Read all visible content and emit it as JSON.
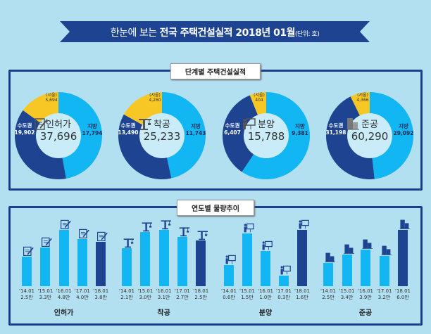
{
  "title": {
    "prefix": "한눈에 보는 ",
    "bold": "전국 주택건설실적 2018년 01월",
    "unit": "(단위: 호)"
  },
  "colors": {
    "metro": "#1d4391",
    "region": "#12b6f2",
    "seoul": "#f7c825",
    "latest_bar": "#1d4391",
    "bar": "#12b6f2"
  },
  "section1": {
    "label": "단계별 주택건설실적",
    "stages": [
      {
        "name": "인허가",
        "total": "37,696",
        "metro_label": "수도권",
        "metro": "19,902",
        "region_label": "지방",
        "region": "17,794",
        "seoul_label": "(서울)",
        "seoul": "5,694",
        "icon": "document-pen-icon"
      },
      {
        "name": "착공",
        "total": "25,233",
        "metro_label": "수도권",
        "metro": "13,490",
        "region_label": "지방",
        "region": "11,743",
        "seoul_label": "(서울)",
        "seoul": "4,260",
        "icon": "crane-icon"
      },
      {
        "name": "분양",
        "total": "15,788",
        "metro_label": "수도권",
        "metro": "6,407",
        "region_label": "지방",
        "region": "9,381",
        "seoul_label": "(서울)",
        "seoul": "404",
        "icon": "presentation-board-icon"
      },
      {
        "name": "준공",
        "total": "60,290",
        "metro_label": "수도권",
        "metro": "31,198",
        "region_label": "지방",
        "region": "29,092",
        "seoul_label": "(서울)",
        "seoul": "4,366",
        "icon": "buildings-icon"
      }
    ]
  },
  "section2": {
    "label": "연도별 물량추이",
    "groups": [
      {
        "name": "인허가",
        "years": [
          "'14.01",
          "'15.01",
          "'16.01",
          "'17.01",
          "'18.01"
        ],
        "values": [
          "2.5만",
          "3.3만",
          "4.8만",
          "4.0만",
          "3.8만"
        ],
        "numbers": [
          2.5,
          3.3,
          4.8,
          4.0,
          3.8
        ]
      },
      {
        "name": "착공",
        "years": [
          "'14.01",
          "'15.01",
          "'16.01",
          "'17.01",
          "'18.01"
        ],
        "values": [
          "2.1만",
          "3.0만",
          "3.1만",
          "2.7만",
          "2.5만"
        ],
        "numbers": [
          2.1,
          3.0,
          3.1,
          2.7,
          2.5
        ]
      },
      {
        "name": "분양",
        "years": [
          "'14.01",
          "'15.01",
          "'16.01",
          "'17.01",
          "'18.01"
        ],
        "values": [
          "0.6만",
          "1.5만",
          "1.0만",
          "0.3만",
          "1.6만"
        ],
        "numbers": [
          0.6,
          1.5,
          1.0,
          0.3,
          1.6
        ]
      },
      {
        "name": "준공",
        "years": [
          "'14.01",
          "'15.01",
          "'16.01",
          "'17.01",
          "'18.01"
        ],
        "values": [
          "2.5만",
          "3.4만",
          "3.9만",
          "3.2만",
          "6.0만"
        ],
        "numbers": [
          2.5,
          3.4,
          3.9,
          3.2,
          6.0
        ]
      }
    ]
  }
}
